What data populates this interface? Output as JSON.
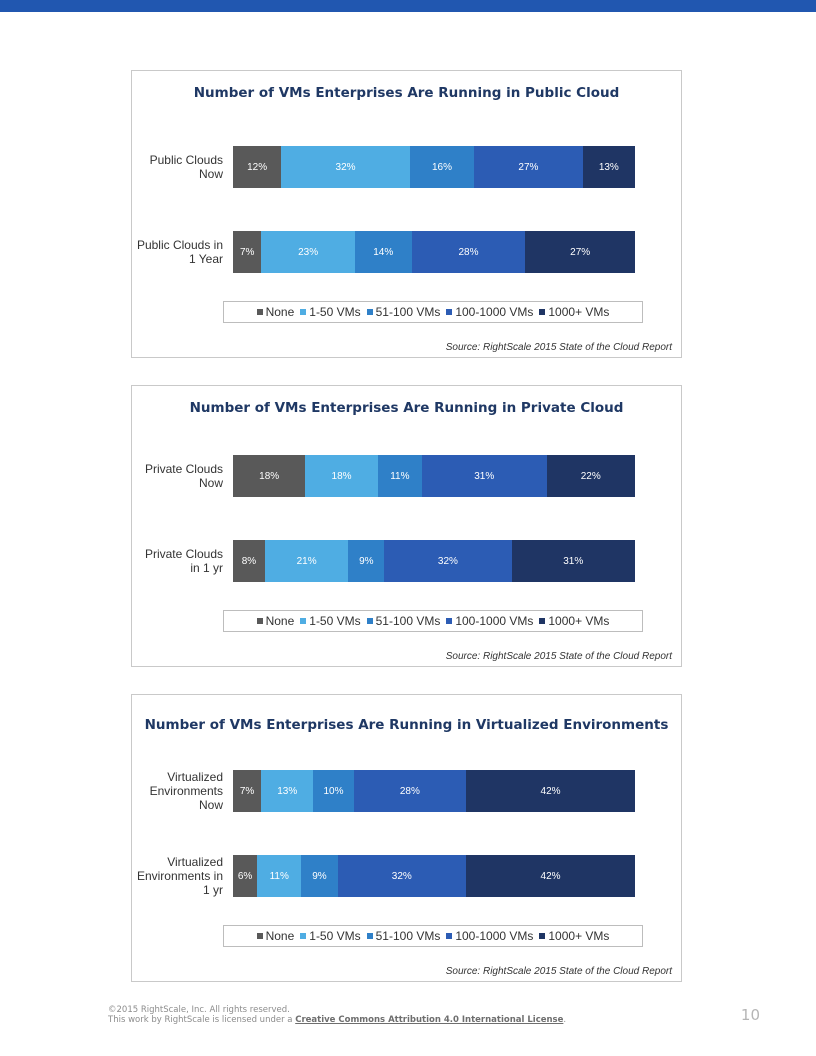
{
  "colors": {
    "None": "#595959",
    "1-50 VMs": "#4fade3",
    "51-100 VMs": "#2f80c8",
    "100-1000 VMs": "#2c5cb4",
    "1000+ VMs": "#1f3564"
  },
  "chart_data": [
    {
      "type": "bar",
      "orientation": "horizontal",
      "stacked": true,
      "title": "Number of VMs Enterprises Are Running in Public Cloud",
      "categories": [
        "Public Clouds Now",
        "Public Clouds in 1 Year"
      ],
      "category_labels": [
        "Public Clouds\nNow",
        "Public Clouds in\n1 Year"
      ],
      "series": [
        {
          "name": "None",
          "values": [
            12,
            7
          ]
        },
        {
          "name": "1-50 VMs",
          "values": [
            32,
            23
          ]
        },
        {
          "name": "51-100 VMs",
          "values": [
            16,
            14
          ]
        },
        {
          "name": "100-1000 VMs",
          "values": [
            27,
            28
          ]
        },
        {
          "name": "1000+ VMs",
          "values": [
            13,
            27
          ]
        }
      ],
      "legend": "bottom",
      "source": "Source: RightScale 2015 State of the Cloud Report"
    },
    {
      "type": "bar",
      "orientation": "horizontal",
      "stacked": true,
      "title": "Number of VMs Enterprises Are Running in Private Cloud",
      "categories": [
        "Private Clouds Now",
        "Private Clouds in 1 yr"
      ],
      "category_labels": [
        "Private Clouds\nNow",
        "Private Clouds\nin 1 yr"
      ],
      "series": [
        {
          "name": "None",
          "values": [
            18,
            8
          ]
        },
        {
          "name": "1-50 VMs",
          "values": [
            18,
            21
          ]
        },
        {
          "name": "51-100 VMs",
          "values": [
            11,
            9
          ]
        },
        {
          "name": "100-1000 VMs",
          "values": [
            31,
            32
          ]
        },
        {
          "name": "1000+ VMs",
          "values": [
            22,
            31
          ]
        }
      ],
      "legend": "bottom",
      "source": "Source: RightScale 2015 State of the Cloud Report"
    },
    {
      "type": "bar",
      "orientation": "horizontal",
      "stacked": true,
      "title": "Number of VMs Enterprises Are Running in Virtualized Environments",
      "categories": [
        "Virtualized Environments Now",
        "Virtualized Environments in 1 yr"
      ],
      "category_labels": [
        "Virtualized\nEnvironments\nNow",
        "Virtualized\nEnvironments in\n1 yr"
      ],
      "series": [
        {
          "name": "None",
          "values": [
            7,
            6
          ]
        },
        {
          "name": "1-50 VMs",
          "values": [
            13,
            11
          ]
        },
        {
          "name": "51-100 VMs",
          "values": [
            10,
            9
          ]
        },
        {
          "name": "100-1000 VMs",
          "values": [
            28,
            32
          ]
        },
        {
          "name": "1000+ VMs",
          "values": [
            42,
            42
          ]
        }
      ],
      "legend": "bottom",
      "source": "Source: RightScale 2015 State of the Cloud Report"
    }
  ],
  "footer": {
    "copyright": "©2015 RightScale, Inc. All rights reserved.",
    "license_prefix": "This work by RightScale is licensed under a ",
    "license_link": "Creative Commons Attribution 4.0 International License",
    "license_suffix": ".",
    "page_number": "10"
  }
}
